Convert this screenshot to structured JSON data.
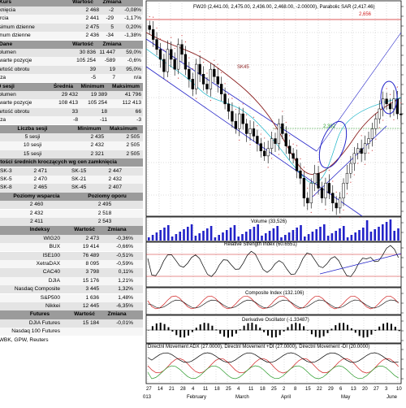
{
  "kurs_table": {
    "headers": [
      "Kurs",
      "Wartość",
      "Zmiana"
    ],
    "rows": [
      [
        "zamknięcia",
        "2 468",
        "-2",
        "-0,08%"
      ],
      [
        "otwarcia",
        "2 441",
        "-29",
        "-1,17%"
      ],
      [
        "maksimum dzienne",
        "2 475",
        "5",
        "0,20%"
      ],
      [
        "minimum dzienne",
        "2 436",
        "-34",
        "-1,38%"
      ]
    ]
  },
  "dane_table": {
    "headers": [
      "Dane",
      "Wartość",
      "Zmiana"
    ],
    "rows": [
      [
        "Wolumen",
        "30 836",
        "11 447",
        "59,0%"
      ],
      [
        "Otwarte pozycje",
        "105 254",
        "-589",
        "-0,6%"
      ],
      [
        "Wartość obrotu",
        "39",
        "19",
        "95,0%"
      ],
      [
        "Baza",
        "-5",
        "7",
        "n/a"
      ]
    ]
  },
  "sesji_table": {
    "headers": [
      "20 sesji",
      "Średnia",
      "Minimum",
      "Maksimum"
    ],
    "rows": [
      [
        "Wolumen",
        "29 432",
        "19 389",
        "41 796"
      ],
      [
        "Otwarte pozycje",
        "108 413",
        "105 254",
        "112 413"
      ],
      [
        "Wartość obrotu",
        "33",
        "18",
        "66"
      ],
      [
        "Baza",
        "-8",
        "-11",
        "-3"
      ]
    ]
  },
  "liczba_table": {
    "headers": [
      "Liczba sesji",
      "Minimum",
      "Maksimum"
    ],
    "rows": [
      [
        "5 sesji",
        "2 435",
        "2 505"
      ],
      [
        "10 sesji",
        "2 432",
        "2 505"
      ],
      [
        "15 sesji",
        "2 321",
        "2 505"
      ]
    ]
  },
  "sk_table": {
    "title": "Wartości średnich kroczących wg cen zamknięcia",
    "rows": [
      [
        "SK-3",
        "2 471",
        "SK-15",
        "2 447"
      ],
      [
        "SK-5",
        "2 470",
        "SK-21",
        "2 432"
      ],
      [
        "SK-8",
        "2 465",
        "SK-45",
        "2 407"
      ]
    ]
  },
  "poziomy_table": {
    "headers": [
      "Poziomy wsparcia",
      "Poziomy oporu"
    ],
    "rows": [
      [
        "2 460",
        "2 495"
      ],
      [
        "2 432",
        "2 518"
      ],
      [
        "2 411",
        "2 543"
      ]
    ]
  },
  "indeksy_table": {
    "headers": [
      "Indeksy",
      "Wartość",
      "Zmiana"
    ],
    "rows": [
      [
        "WIG20",
        "2 473",
        "-0,36%"
      ],
      [
        "BUX",
        "19 414",
        "-0,66%"
      ],
      [
        "ISE100",
        "76 489",
        "-0,51%"
      ],
      [
        "XetraDAX",
        "8 095",
        "-0,59%"
      ],
      [
        "CAC40",
        "3 798",
        "0,11%"
      ],
      [
        "DJIA",
        "15 176",
        "1,21%"
      ],
      [
        "Nasdaq Composite",
        "3 445",
        "1,32%"
      ],
      [
        "S&P500",
        "1 636",
        "1,48%"
      ],
      [
        "Nikkei",
        "12 445",
        "-6,35%"
      ]
    ]
  },
  "futures_table": {
    "headers": [
      "Futures",
      "Wartość",
      "Zmiana"
    ],
    "rows": [
      [
        "DJIA Futures",
        "15 184",
        "-0,01%"
      ],
      [
        "Nasdaq 100 Futures",
        "",
        ""
      ]
    ]
  },
  "source": "Źródło: DM BZ WBK, GPW, Reuters",
  "chart": {
    "price_title": "FW20 (2,441.00, 2,475.00, 2,436.00, 2,468.00, -2.00000), Parabolic SAR (2,417.46)",
    "label_2656": "2,656",
    "label_sk45": "SK45",
    "label_2392": "2,392",
    "volume_title": "Volume (33,526)",
    "rsi_title": "Relative Strength Index (60.6551)",
    "composite_title": "Composite Index (132.106)",
    "derivative_title": "Derivative Oscillator (-1.33487)",
    "dmi_title": "Directnl Movement ADX (27.0000), Directnl Movement +DI (27.0000), Directnl Movement -DI (20.0000)",
    "x_day_labels": [
      "27",
      "14",
      "21",
      "28",
      "4",
      "11",
      "18",
      "25",
      "4",
      "11",
      "18",
      "25",
      "2",
      "8",
      "15",
      "22",
      "29",
      "6",
      "13",
      "20",
      "27",
      "3",
      "10"
    ],
    "x_month_labels": [
      "013",
      "February",
      "March",
      "April",
      "May",
      "June"
    ],
    "colors": {
      "candle": "#000000",
      "channel": "#2323c8",
      "sar": "#d04040",
      "sk_line": "#8a1e1e",
      "sk_short": "#19b4c8",
      "ellipse": "#2323c8",
      "resistance": "#d02020"
    },
    "chart_data": [
      {
        "type": "candlestick",
        "title": "FW20 (2,441.00, 2,475.00, 2,436.00, 2,468.00, -2.00000), Parabolic SAR (2,417.46)",
        "annotations": [
          "2,656",
          "SK45",
          "2,392"
        ],
        "close_approx": [
          2640,
          2620,
          2600,
          2580,
          2555,
          2600,
          2580,
          2560,
          2610,
          2590,
          2560,
          2540,
          2520,
          2570,
          2550,
          2530,
          2520,
          2560,
          2545,
          2530,
          2510,
          2490,
          2475,
          2455,
          2440,
          2470,
          2450,
          2430,
          2440,
          2425,
          2410,
          2395,
          2385,
          2400,
          2420,
          2410,
          2450,
          2430,
          2405,
          2390,
          2380,
          2355,
          2340,
          2300,
          2290,
          2330,
          2350,
          2320,
          2300,
          2330,
          2310,
          2290,
          2280,
          2300,
          2330,
          2350,
          2370,
          2390,
          2400,
          2390,
          2410,
          2420,
          2440,
          2460,
          2480,
          2500,
          2490,
          2480,
          2500,
          2470,
          2468
        ]
      },
      {
        "type": "bar",
        "title": "Volume (33,526)"
      },
      {
        "type": "line",
        "title": "Relative Strength Index (60.6551)"
      },
      {
        "type": "line",
        "title": "Composite Index (132.106)"
      },
      {
        "type": "bar",
        "title": "Derivative Oscillator (-1.33487)"
      },
      {
        "type": "line",
        "title": "Directnl Movement ADX (27.0000), Directnl Movement +DI (27.0000), Directnl Movement -DI (20.0000)"
      }
    ]
  }
}
